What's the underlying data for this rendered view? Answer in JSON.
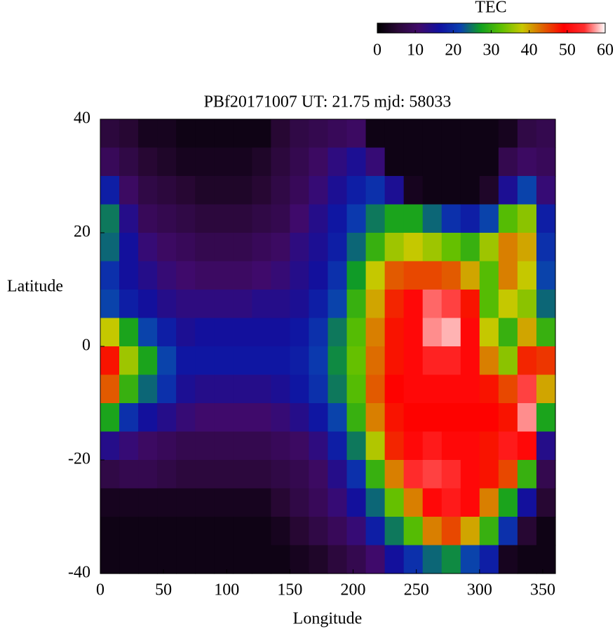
{
  "chart_data": {
    "type": "heatmap",
    "title": "PBf20171007  UT: 21.75  mjd: 58033",
    "xlabel": "Longitude",
    "ylabel": "Latitude",
    "xlim": [
      0,
      360
    ],
    "ylim": [
      -40,
      40
    ],
    "xticks": [
      0,
      50,
      100,
      150,
      200,
      250,
      300,
      350
    ],
    "yticks": [
      -40,
      -20,
      0,
      20,
      40
    ],
    "colorbar_label": "TEC",
    "zlim": [
      0,
      60
    ],
    "zticks": [
      0,
      10,
      20,
      30,
      40,
      50,
      60
    ],
    "colorscale": [
      "#000000",
      "#2a0838",
      "#400a6a",
      "#1010a0",
      "#0a40b0",
      "#10a020",
      "#60c000",
      "#c8c800",
      "#e06000",
      "#ff0000",
      "#ff3030",
      "#ffffff"
    ],
    "x": [
      7.5,
      22.5,
      37.5,
      52.5,
      67.5,
      82.5,
      97.5,
      112.5,
      127.5,
      142.5,
      157.5,
      172.5,
      187.5,
      202.5,
      217.5,
      232.5,
      247.5,
      262.5,
      277.5,
      292.5,
      307.5,
      322.5,
      337.5,
      352.5
    ],
    "y": [
      37.5,
      32.5,
      27.5,
      22.5,
      17.5,
      12.5,
      7.5,
      2.5,
      -2.5,
      -7.5,
      -12.5,
      -17.5,
      -22.5,
      -27.5,
      -32.5,
      -37.5
    ],
    "values": [
      [
        6,
        5,
        3,
        3,
        2,
        2,
        2,
        2,
        2,
        5,
        7,
        8,
        9,
        10,
        2,
        2,
        2,
        2,
        2,
        2,
        2,
        3,
        7,
        8
      ],
      [
        9,
        7,
        5,
        4,
        3,
        3,
        3,
        3,
        4,
        6,
        8,
        10,
        13,
        15,
        12,
        2,
        2,
        2,
        2,
        2,
        2,
        8,
        10,
        9
      ],
      [
        18,
        10,
        7,
        6,
        5,
        4,
        4,
        4,
        5,
        7,
        9,
        12,
        15,
        18,
        20,
        15,
        3,
        2,
        2,
        2,
        4,
        15,
        22,
        12
      ],
      [
        25,
        14,
        9,
        8,
        7,
        6,
        6,
        6,
        7,
        8,
        11,
        14,
        17,
        21,
        25,
        28,
        28,
        24,
        20,
        18,
        22,
        32,
        35,
        18
      ],
      [
        24,
        16,
        12,
        10,
        9,
        8,
        8,
        8,
        9,
        10,
        13,
        15,
        18,
        24,
        30,
        36,
        38,
        36,
        33,
        30,
        36,
        42,
        40,
        20
      ],
      [
        20,
        16,
        14,
        12,
        11,
        10,
        10,
        10,
        11,
        12,
        14,
        16,
        20,
        27,
        38,
        44,
        45,
        45,
        44,
        40,
        32,
        42,
        38,
        22
      ],
      [
        22,
        18,
        16,
        14,
        13,
        13,
        13,
        13,
        14,
        14,
        15,
        18,
        22,
        30,
        40,
        47,
        50,
        56,
        55,
        48,
        32,
        38,
        35,
        24
      ],
      [
        38,
        28,
        22,
        18,
        15,
        16,
        16,
        16,
        16,
        16,
        17,
        20,
        25,
        32,
        42,
        48,
        50,
        57,
        58,
        50,
        38,
        30,
        40,
        30
      ],
      [
        48,
        36,
        28,
        22,
        17,
        17,
        17,
        17,
        17,
        17,
        18,
        21,
        26,
        33,
        43,
        48,
        50,
        53,
        53,
        50,
        42,
        35,
        47,
        46
      ],
      [
        44,
        30,
        24,
        20,
        15,
        14,
        14,
        14,
        14,
        15,
        17,
        20,
        25,
        32,
        44,
        49,
        50,
        50,
        50,
        50,
        48,
        45,
        55,
        40
      ],
      [
        28,
        20,
        16,
        14,
        12,
        11,
        11,
        11,
        11,
        12,
        14,
        17,
        22,
        30,
        42,
        48,
        49,
        49,
        49,
        49,
        49,
        48,
        57,
        28
      ],
      [
        14,
        12,
        10,
        9,
        8,
        8,
        8,
        8,
        8,
        9,
        10,
        13,
        18,
        25,
        37,
        47,
        50,
        52,
        50,
        50,
        48,
        52,
        50,
        14
      ],
      [
        7,
        8,
        8,
        7,
        6,
        6,
        6,
        6,
        6,
        7,
        8,
        10,
        14,
        20,
        30,
        42,
        54,
        55,
        54,
        50,
        48,
        45,
        30,
        8
      ],
      [
        3,
        3,
        3,
        3,
        3,
        3,
        3,
        3,
        3,
        5,
        7,
        9,
        12,
        16,
        24,
        33,
        42,
        50,
        52,
        50,
        42,
        28,
        16,
        5
      ],
      [
        2,
        2,
        2,
        2,
        2,
        2,
        2,
        2,
        2,
        3,
        5,
        7,
        9,
        12,
        18,
        25,
        32,
        42,
        45,
        40,
        30,
        20,
        5,
        2
      ],
      [
        2,
        2,
        2,
        2,
        2,
        2,
        2,
        2,
        2,
        2,
        3,
        4,
        6,
        8,
        11,
        16,
        20,
        24,
        26,
        22,
        18,
        3,
        2,
        2
      ]
    ]
  }
}
